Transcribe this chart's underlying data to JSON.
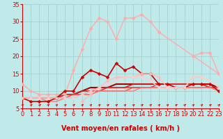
{
  "xlabel": "Vent moyen/en rafales ( km/h )",
  "xlim": [
    0,
    23
  ],
  "ylim": [
    5,
    35
  ],
  "yticks": [
    5,
    10,
    15,
    20,
    25,
    30,
    35
  ],
  "xticks": [
    0,
    1,
    2,
    3,
    4,
    5,
    6,
    7,
    8,
    9,
    10,
    11,
    12,
    13,
    14,
    15,
    16,
    17,
    18,
    19,
    20,
    21,
    22,
    23
  ],
  "background_color": "#c0eaea",
  "grid_color": "#a0cccc",
  "lines": [
    {
      "x": [
        0,
        1,
        2,
        3,
        4,
        5,
        6,
        7,
        8,
        9,
        10,
        11,
        12,
        13,
        14,
        15,
        16,
        17,
        18,
        19,
        20,
        21,
        22,
        23
      ],
      "y": [
        12,
        10,
        9,
        9,
        9,
        9,
        16,
        22,
        28,
        31,
        30,
        25,
        31,
        31,
        32,
        30,
        27,
        null,
        null,
        null,
        null,
        null,
        null,
        15
      ],
      "color": "#ffaaaa",
      "lw": 1.0,
      "marker": "D",
      "ms": 2.5
    },
    {
      "x": [
        19,
        20,
        21,
        22,
        23
      ],
      "y": [
        null,
        20,
        21,
        21,
        15
      ],
      "color": "#ffaaaa",
      "lw": 1.0,
      "marker": "D",
      "ms": 2.5
    },
    {
      "x": [
        0,
        1,
        2,
        3,
        4,
        5,
        6,
        7,
        8,
        9,
        10,
        11,
        12,
        13,
        14,
        15,
        16,
        17,
        18,
        19,
        20,
        21,
        22,
        23
      ],
      "y": [
        8,
        7,
        7,
        7,
        8,
        10,
        10,
        14,
        16,
        15,
        14,
        18,
        16,
        17,
        15,
        15,
        12,
        12,
        11,
        11,
        12,
        12,
        12,
        10
      ],
      "color": "#cc0000",
      "lw": 1.2,
      "marker": "D",
      "ms": 2.5
    },
    {
      "x": [
        0,
        1,
        2,
        3,
        4,
        5,
        6,
        7,
        8,
        9,
        10,
        11,
        12,
        13,
        14,
        15,
        16,
        17,
        18,
        19,
        20,
        21,
        22,
        23
      ],
      "y": [
        8,
        8,
        8,
        8,
        8,
        9,
        9,
        10,
        11,
        11,
        11,
        12,
        12,
        12,
        12,
        12,
        12,
        12,
        12,
        12,
        12,
        12,
        12,
        11
      ],
      "color": "#aa0000",
      "lw": 1.5,
      "marker": null,
      "ms": 0
    },
    {
      "x": [
        0,
        1,
        2,
        3,
        4,
        5,
        6,
        7,
        8,
        9,
        10,
        11,
        12,
        13,
        14,
        15,
        16,
        17,
        18,
        19,
        20,
        21,
        22,
        23
      ],
      "y": [
        8,
        8,
        8,
        8,
        8,
        9,
        9,
        10,
        10,
        11,
        11,
        11,
        11,
        12,
        12,
        12,
        12,
        12,
        12,
        12,
        12,
        12,
        11,
        11
      ],
      "color": "#cc2222",
      "lw": 1.2,
      "marker": null,
      "ms": 0
    },
    {
      "x": [
        0,
        1,
        2,
        3,
        4,
        5,
        6,
        7,
        8,
        9,
        10,
        11,
        12,
        13,
        14,
        15,
        16,
        17,
        18,
        19,
        20,
        21,
        22,
        23
      ],
      "y": [
        8,
        8,
        8,
        8,
        8,
        9,
        9,
        9,
        10,
        10,
        11,
        11,
        11,
        11,
        11,
        11,
        12,
        12,
        12,
        12,
        12,
        12,
        11,
        11
      ],
      "color": "#dd3333",
      "lw": 1.1,
      "marker": null,
      "ms": 0
    },
    {
      "x": [
        0,
        1,
        2,
        3,
        4,
        5,
        6,
        7,
        8,
        9,
        10,
        11,
        12,
        13,
        14,
        15,
        16,
        17,
        18,
        19,
        20,
        21,
        22,
        23
      ],
      "y": [
        8,
        8,
        8,
        8,
        8,
        8,
        9,
        9,
        9,
        10,
        10,
        10,
        10,
        11,
        11,
        11,
        11,
        11,
        11,
        11,
        11,
        11,
        11,
        11
      ],
      "color": "#ee5555",
      "lw": 1.0,
      "marker": null,
      "ms": 0
    },
    {
      "x": [
        0,
        1,
        2,
        3,
        4,
        5,
        6,
        7,
        8,
        9,
        10,
        11,
        12,
        13,
        14,
        15,
        16,
        17,
        18,
        19,
        20,
        21,
        22,
        23
      ],
      "y": [
        8,
        8,
        8,
        7,
        7,
        8,
        8,
        9,
        9,
        10,
        10,
        10,
        10,
        10,
        11,
        11,
        11,
        11,
        11,
        11,
        11,
        11,
        11,
        10
      ],
      "color": "#ff7777",
      "lw": 1.0,
      "marker": null,
      "ms": 0
    },
    {
      "x": [
        7,
        8,
        9,
        10,
        11,
        12,
        13,
        14,
        15,
        16,
        17,
        18,
        19,
        20,
        21
      ],
      "y": [
        7,
        9,
        11,
        13,
        14,
        14,
        14,
        15,
        15,
        14,
        11,
        11,
        11,
        14,
        14
      ],
      "color": "#ffbbbb",
      "lw": 1.0,
      "marker": "D",
      "ms": 2.5
    },
    {
      "x": [
        0,
        1,
        2,
        3,
        4,
        5,
        6,
        7,
        8,
        9,
        10,
        11,
        12,
        13,
        14,
        15,
        16,
        17,
        18,
        19,
        20,
        21,
        22,
        23
      ],
      "y": [
        8,
        8,
        8,
        8,
        8,
        8,
        8,
        9,
        10,
        11,
        12,
        13,
        14,
        14,
        14,
        13,
        11,
        11,
        11,
        11,
        14,
        14,
        13,
        11
      ],
      "color": "#ffcccc",
      "lw": 1.0,
      "marker": "D",
      "ms": 2.0
    }
  ],
  "xlabel_fontsize": 7,
  "tick_fontsize": 6
}
